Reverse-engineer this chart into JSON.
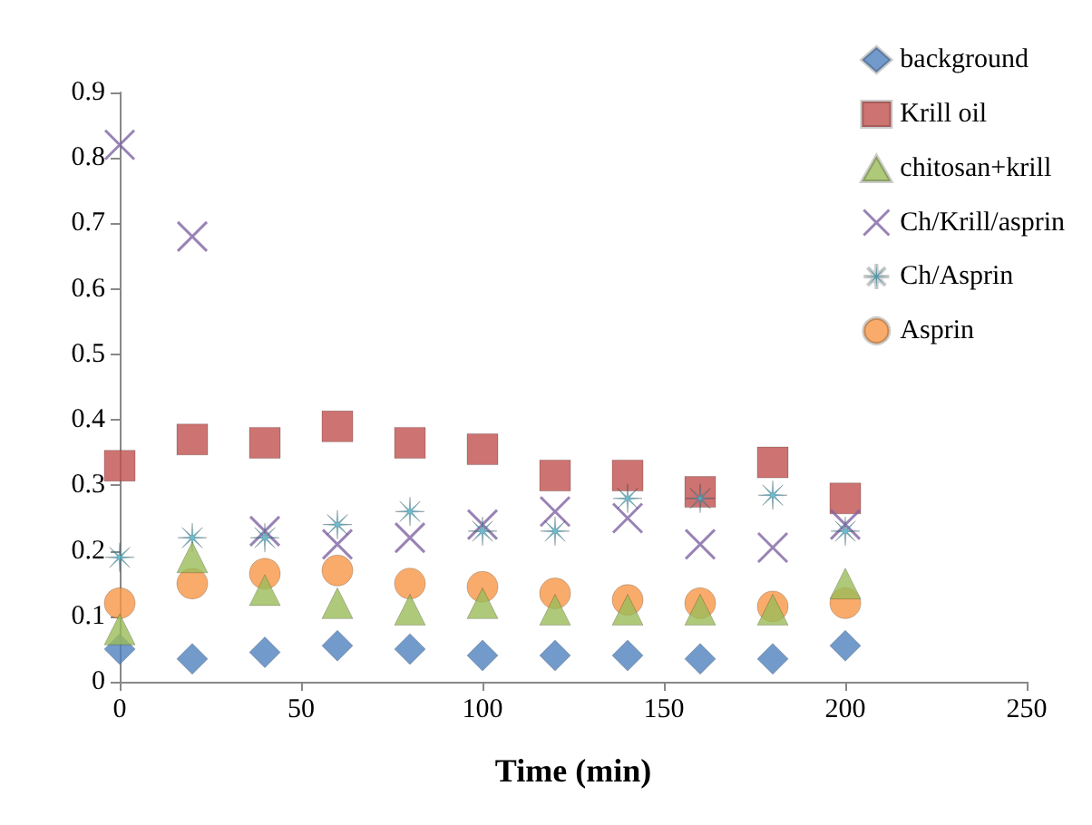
{
  "chart_data": {
    "type": "scatter",
    "xlabel": "Time (min)",
    "x": [
      0,
      20,
      40,
      60,
      80,
      100,
      120,
      140,
      160,
      180,
      200
    ],
    "xlim": [
      0,
      250
    ],
    "xticks": [
      0,
      50,
      100,
      150,
      200,
      250
    ],
    "ylim": [
      0,
      0.9
    ],
    "yticks": [
      0,
      0.1,
      0.2,
      0.3,
      0.4,
      0.5,
      0.6,
      0.7,
      0.8,
      0.9
    ],
    "grid": false,
    "legend": "top right",
    "series": [
      {
        "name": "background",
        "color": "#4f81bd",
        "marker": "diamond",
        "values": [
          0.05,
          0.035,
          0.045,
          0.055,
          0.05,
          0.04,
          0.04,
          0.04,
          0.035,
          0.035,
          0.055
        ]
      },
      {
        "name": "Krill oil",
        "color": "#c0504d",
        "marker": "square",
        "values": [
          0.33,
          0.37,
          0.365,
          0.39,
          0.365,
          0.355,
          0.315,
          0.315,
          0.29,
          0.335,
          0.28
        ]
      },
      {
        "name": "chitosan+krill",
        "color": "#9bbb59",
        "marker": "triangle",
        "values": [
          0.08,
          0.19,
          0.14,
          0.12,
          0.11,
          0.12,
          0.11,
          0.11,
          0.11,
          0.11,
          0.15
        ]
      },
      {
        "name": "Ch/Krill/asprin",
        "color": "#8064a2",
        "marker": "cross",
        "values": [
          0.82,
          0.68,
          0.23,
          0.21,
          0.22,
          0.24,
          0.26,
          0.25,
          0.21,
          0.205,
          0.24
        ]
      },
      {
        "name": "Ch/Asprin",
        "color": "#4bacc6",
        "marker": "star",
        "values": [
          0.19,
          0.22,
          0.22,
          0.24,
          0.26,
          0.23,
          0.23,
          0.28,
          0.28,
          0.285,
          0.23
        ]
      },
      {
        "name": "Asprin",
        "color": "#f79646",
        "marker": "circle",
        "values": [
          0.12,
          0.15,
          0.165,
          0.17,
          0.15,
          0.145,
          0.135,
          0.125,
          0.12,
          0.115,
          0.12
        ]
      }
    ]
  }
}
